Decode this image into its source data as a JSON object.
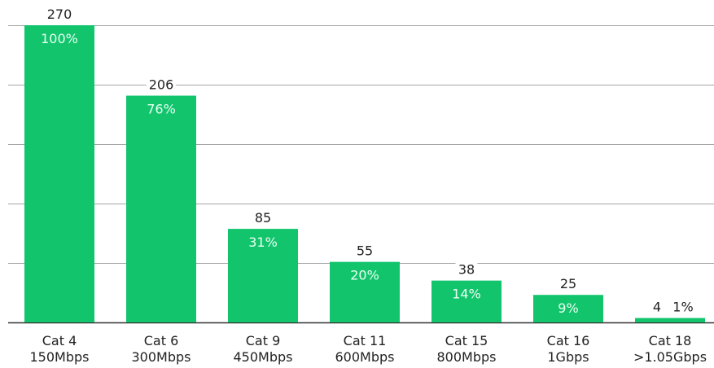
{
  "colors": {
    "bar": "#12c56d",
    "grid": "#a6a6a6",
    "axis": "#333333",
    "text": "#222222",
    "inner_text": "#e9fff3"
  },
  "chart_data": {
    "type": "bar",
    "title": "",
    "xlabel": "",
    "ylabel": "",
    "categories": [
      [
        "Cat 4",
        "150Mbps"
      ],
      [
        "Cat 6",
        "300Mbps"
      ],
      [
        "Cat 9",
        "450Mbps"
      ],
      [
        "Cat 11",
        "600Mbps"
      ],
      [
        "Cat 15",
        "800Mbps"
      ],
      [
        "Cat 16",
        "1Gbps"
      ],
      [
        "Cat 18",
        ">1.05Gbps"
      ]
    ],
    "values": [
      270,
      206,
      85,
      55,
      38,
      25,
      4
    ],
    "percent_labels": [
      "100%",
      "76%",
      "31%",
      "20%",
      "14%",
      "9%",
      "1%"
    ],
    "ylim": [
      0,
      270
    ],
    "gridlines": [
      0,
      54,
      108,
      162,
      216,
      270
    ],
    "grid": true
  }
}
